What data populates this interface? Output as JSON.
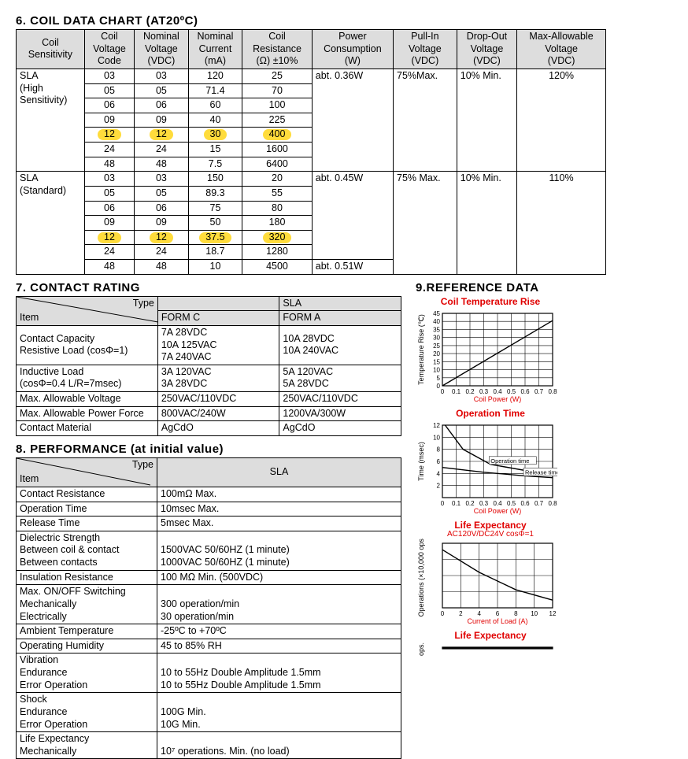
{
  "section6": {
    "title": "6. COIL DATA CHART (AT20ºC)",
    "headers": [
      "Coil\nSensitivity",
      "Coil\nVoltage\nCode",
      "Nominal\nVoltage\n(VDC)",
      "Nominal\nCurrent\n(mA)",
      "Coil\nResistance\n(Ω) ±10%",
      "Power\nConsumption\n(W)",
      "Pull-In\nVoltage\n(VDC)",
      "Drop-Out\nVoltage\n(VDC)",
      "Max-Allowable\nVoltage\n(VDC)"
    ],
    "groups": [
      {
        "name": "SLA\n(High\nSensitivity)",
        "power": "abt. 0.36W",
        "pull": "75%Max.",
        "drop": "10% Min.",
        "max": "120%",
        "rows": [
          {
            "c": "03",
            "v": "03",
            "i": "120",
            "r": "25"
          },
          {
            "c": "05",
            "v": "05",
            "i": "71.4",
            "r": "70"
          },
          {
            "c": "06",
            "v": "06",
            "i": "60",
            "r": "100"
          },
          {
            "c": "09",
            "v": "09",
            "i": "40",
            "r": "225"
          },
          {
            "c": "12",
            "v": "12",
            "i": "30",
            "r": "400",
            "hl": true
          },
          {
            "c": "24",
            "v": "24",
            "i": "15",
            "r": "1600"
          },
          {
            "c": "48",
            "v": "48",
            "i": "7.5",
            "r": "6400"
          }
        ]
      },
      {
        "name": "SLA\n(Standard)",
        "power": "abt. 0.45W",
        "pull": "75% Max.",
        "drop": "10% Min.",
        "max": "110%",
        "rows": [
          {
            "c": "03",
            "v": "03",
            "i": "150",
            "r": "20"
          },
          {
            "c": "05",
            "v": "05",
            "i": "89.3",
            "r": "55"
          },
          {
            "c": "06",
            "v": "06",
            "i": "75",
            "r": "80"
          },
          {
            "c": "09",
            "v": "09",
            "i": "50",
            "r": "180"
          },
          {
            "c": "12",
            "v": "12",
            "i": "37.5",
            "r": "320",
            "hl": true
          },
          {
            "c": "24",
            "v": "24",
            "i": "18.7",
            "r": "1280"
          },
          {
            "c": "48",
            "v": "48",
            "i": "10",
            "r": "4500",
            "power2": "abt. 0.51W"
          }
        ]
      }
    ]
  },
  "section7": {
    "title": "7. CONTACT RATING",
    "type_head": "Type",
    "item_head": "Item",
    "col1": "FORM C",
    "col2_pre": "SLA",
    "col2": "FORM A",
    "rows": [
      {
        "k": "Contact Capacity\nResistive Load (cosΦ=1)",
        "a": "7A   28VDC\n10A 125VAC\n7A   240VAC",
        "b": "10A 28VDC\n10A 240VAC"
      },
      {
        "k": "   Inductive Load\n(cosΦ=0.4 L/R=7msec)",
        "a": "3A 120VAC\n3A 28VDC",
        "b": "5A 120VAC\n5A 28VDC"
      },
      {
        "k": "Max. Allowable Voltage",
        "a": "250VAC/110VDC",
        "b": "250VAC/110VDC"
      },
      {
        "k": "Max. Allowable Power Force",
        "a": "800VAC/240W",
        "b": "1200VA/300W"
      },
      {
        "k": "Contact Material",
        "a": "AgCdO",
        "b": "AgCdO"
      }
    ]
  },
  "section8": {
    "title": "8. PERFORMANCE (at initial value)",
    "type_head": "Type",
    "item_head": "Item",
    "col": "SLA",
    "rows": [
      {
        "k": "Contact Resistance",
        "v": "100mΩ Max."
      },
      {
        "k": "Operation Time",
        "v": "10msec Max."
      },
      {
        "k": "Release Time",
        "v": "5msec Max."
      },
      {
        "k": "Dielectric Strength\n   Between coil & contact\n   Between contacts",
        "v": "\n1500VAC 50/60HZ (1 minute)\n1000VAC 50/60HZ (1 minute)"
      },
      {
        "k": "Insulation Resistance",
        "v": "100 MΩ Min. (500VDC)"
      },
      {
        "k": "Max. ON/OFF Switching\nMechanically\nElectrically",
        "v": "\n300 operation/min\n30 operation/min"
      },
      {
        "k": "Ambient Temperature",
        "v": "-25ºC to +70ºC"
      },
      {
        "k": "Operating Humidity",
        "v": "45 to 85% RH"
      },
      {
        "k": "Vibration\nEndurance\nError Operation",
        "v": "\n10 to 55Hz Double Amplitude 1.5mm\n10 to 55Hz Double Amplitude 1.5mm"
      },
      {
        "k": "Shock\nEndurance\nError Operation",
        "v": "\n100G Min.\n10G Min."
      },
      {
        "k": "Life Expectancy\nMechanically",
        "v": "\n10⁷ operations. Min. (no load)",
        "partial": true
      }
    ]
  },
  "section9": {
    "title": "9.REFERENCE DATA",
    "charts": [
      {
        "title": "Coil Temperature Rise",
        "xlabel": "Coil Power (W)",
        "ylabel": "Temperature Rise (℃)",
        "xlim": [
          0,
          0.8
        ],
        "ylim": [
          0,
          50
        ],
        "xticks": [
          "0",
          "0.1",
          "0.2",
          "0.3",
          "0.4",
          "0.5",
          "0.6",
          "0.7",
          "0.8"
        ],
        "yticks": [
          "0",
          "5",
          "10",
          "15",
          "20",
          "25",
          "30",
          "35",
          "40",
          "45"
        ],
        "line": [
          {
            "x": 0,
            "y": 0
          },
          {
            "x": 0.8,
            "y": 45
          }
        ],
        "color": "#000",
        "height": 120
      },
      {
        "title": "Operation Time",
        "xlabel": "Coil Power (W)",
        "ylabel": "Time (msec)",
        "xlim": [
          0,
          0.8
        ],
        "ylim": [
          0,
          12
        ],
        "xticks": [
          "0",
          "0.1",
          "0.2",
          "0.3",
          "0.4",
          "0.5",
          "0.6",
          "0.7",
          "0.8"
        ],
        "yticks": [
          "",
          "2",
          "4",
          "6",
          "8",
          "10",
          "12"
        ],
        "curves": [
          {
            "label": "Operation time",
            "pts": [
              {
                "x": 0.02,
                "y": 12
              },
              {
                "x": 0.15,
                "y": 8
              },
              {
                "x": 0.35,
                "y": 5.5
              },
              {
                "x": 0.6,
                "y": 4.5
              },
              {
                "x": 0.8,
                "y": 4
              }
            ]
          },
          {
            "label": "Release time",
            "pts": [
              {
                "x": 0,
                "y": 5
              },
              {
                "x": 0.3,
                "y": 4.2
              },
              {
                "x": 0.6,
                "y": 3.6
              },
              {
                "x": 0.8,
                "y": 3.3
              }
            ]
          }
        ],
        "color": "#000",
        "height": 120
      },
      {
        "title": "Life Expectancy",
        "sub": "AC120V/DC24V cosΦ=1",
        "xlabel": "Current of Load (A)",
        "ylabel": "Operations (×10,000 ops.)",
        "xlim": [
          0,
          12
        ],
        "ylim": [
          0,
          100
        ],
        "xticks": [
          "0",
          "2",
          "4",
          "6",
          "8",
          "10",
          "12"
        ],
        "yticks": [
          "",
          "",
          "",
          "",
          ""
        ],
        "curves": [
          {
            "label": "",
            "pts": [
              {
                "x": 0,
                "y": 90
              },
              {
                "x": 4,
                "y": 55
              },
              {
                "x": 8,
                "y": 28
              },
              {
                "x": 12,
                "y": 12
              }
            ]
          }
        ],
        "color": "#000",
        "height": 110
      },
      {
        "title": "Life Expectancy",
        "xlabel": "",
        "ylabel": "ops.)",
        "xlim": [
          0,
          10
        ],
        "ylim": [
          0,
          100
        ],
        "xticks": [
          "",
          "",
          "",
          "",
          ""
        ],
        "yticks": [
          "",
          "",
          "",
          ""
        ],
        "curves": [],
        "color": "#000",
        "height": 30,
        "partial": true
      }
    ]
  }
}
